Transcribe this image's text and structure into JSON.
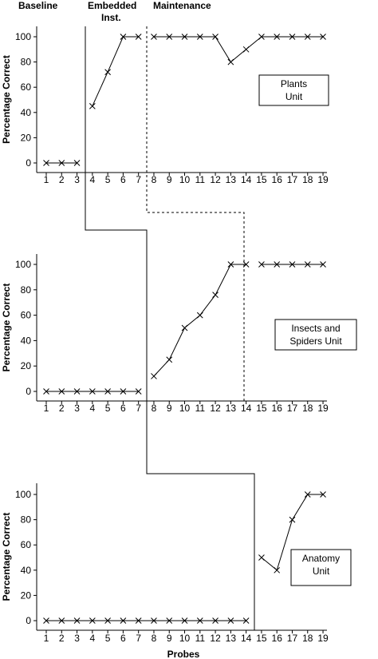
{
  "chart_data": {
    "type": "line",
    "phase_labels": [
      "Baseline",
      "Embedded",
      "Inst.",
      "Maintenance"
    ],
    "xlabel": "Probes",
    "ylabel": "Percentage Correct",
    "x_ticks": [
      1,
      2,
      3,
      4,
      5,
      6,
      7,
      8,
      9,
      10,
      11,
      12,
      13,
      14,
      15,
      16,
      17,
      18,
      19
    ],
    "y_ticks": [
      0,
      20,
      40,
      60,
      80,
      100
    ],
    "ylim": [
      0,
      100
    ],
    "grid": false,
    "panels": [
      {
        "label_lines": [
          "Plants",
          "Unit"
        ],
        "segments": [
          {
            "x": [
              1,
              2,
              3
            ],
            "y": [
              0,
              0,
              0
            ]
          },
          {
            "x": [
              4,
              5,
              6,
              7
            ],
            "y": [
              45,
              72,
              100,
              100
            ]
          },
          {
            "x": [
              8,
              9,
              10,
              11,
              12,
              13,
              14,
              15,
              16,
              17,
              18,
              19
            ],
            "y": [
              100,
              100,
              100,
              100,
              100,
              80,
              90,
              100,
              100,
              100,
              100,
              100
            ]
          }
        ]
      },
      {
        "label_lines": [
          "Insects and",
          "Spiders Unit"
        ],
        "segments": [
          {
            "x": [
              1,
              2,
              3,
              4,
              5,
              6,
              7
            ],
            "y": [
              0,
              0,
              0,
              0,
              0,
              0,
              0
            ]
          },
          {
            "x": [
              8,
              9,
              10,
              11,
              12,
              13,
              14
            ],
            "y": [
              12,
              25,
              50,
              60,
              76,
              100,
              100
            ]
          },
          {
            "x": [
              15,
              16,
              17,
              18,
              19
            ],
            "y": [
              100,
              100,
              100,
              100,
              100
            ]
          }
        ]
      },
      {
        "label_lines": [
          "Anatomy",
          "Unit"
        ],
        "segments": [
          {
            "x": [
              1,
              2,
              3,
              4,
              5,
              6,
              7,
              8,
              9,
              10,
              11,
              12,
              13,
              14
            ],
            "y": [
              0,
              0,
              0,
              0,
              0,
              0,
              0,
              0,
              0,
              0,
              0,
              0,
              0,
              0
            ]
          },
          {
            "x": [
              15,
              16,
              17,
              18,
              19
            ],
            "y": [
              50,
              40,
              80,
              100,
              100
            ]
          }
        ]
      }
    ]
  }
}
